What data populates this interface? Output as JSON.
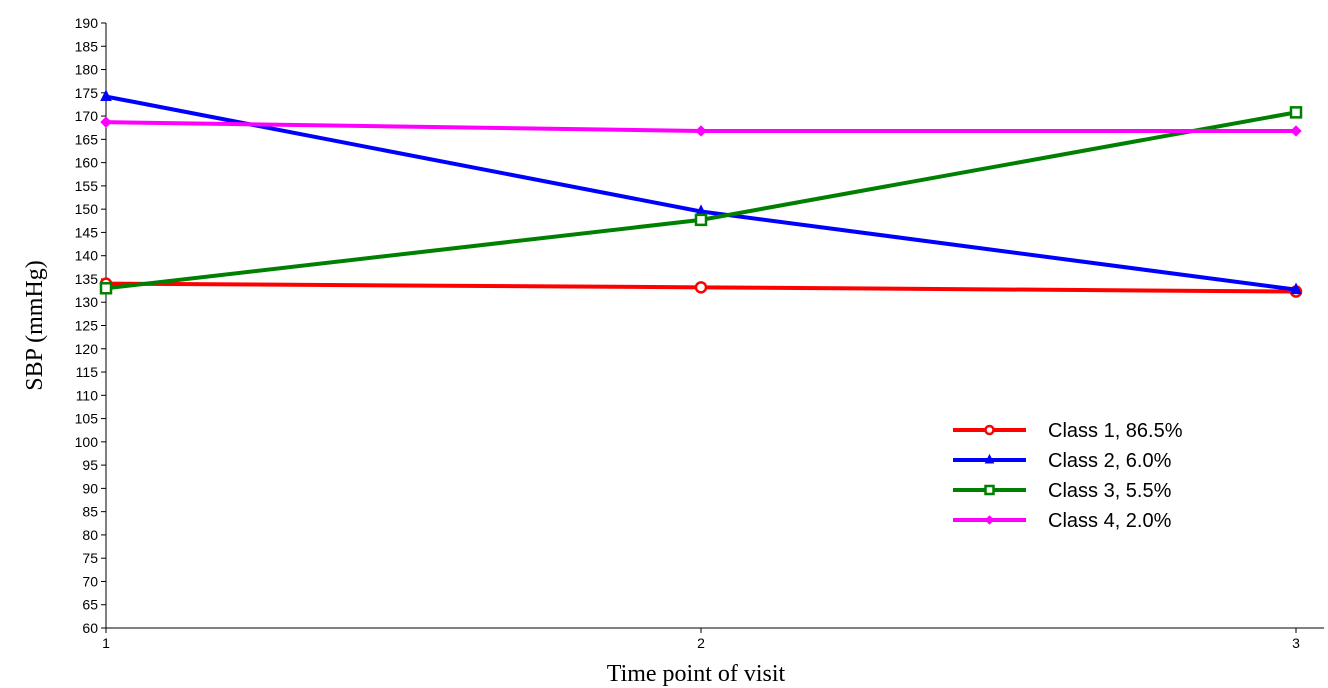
{
  "chart_data": {
    "type": "line",
    "xlabel": "Time point of visit",
    "ylabel": "SBP (mmHg)",
    "x": [
      1,
      2,
      3
    ],
    "xlim": [
      1,
      3
    ],
    "ylim": [
      60,
      190
    ],
    "yticks": [
      60,
      65,
      70,
      75,
      80,
      85,
      90,
      95,
      100,
      105,
      110,
      115,
      120,
      125,
      130,
      135,
      140,
      145,
      150,
      155,
      160,
      165,
      170,
      175,
      180,
      185,
      190
    ],
    "xticks": [
      1,
      2,
      3
    ],
    "grid": false,
    "legend_position": "right",
    "series": [
      {
        "name": "Class 1, 86.5%",
        "values": [
          134.0,
          133.2,
          132.3
        ],
        "color": "#ff0000",
        "marker": "circle-open"
      },
      {
        "name": "Class 2, 6.0%",
        "values": [
          174.2,
          149.5,
          132.7
        ],
        "color": "#0000ff",
        "marker": "triangle"
      },
      {
        "name": "Class 3, 5.5%",
        "values": [
          133.0,
          147.7,
          170.8
        ],
        "color": "#008000",
        "marker": "square-open"
      },
      {
        "name": "Class 4, 2.0%",
        "values": [
          168.7,
          166.8,
          166.8
        ],
        "color": "#ff00ff",
        "marker": "diamond"
      }
    ]
  }
}
